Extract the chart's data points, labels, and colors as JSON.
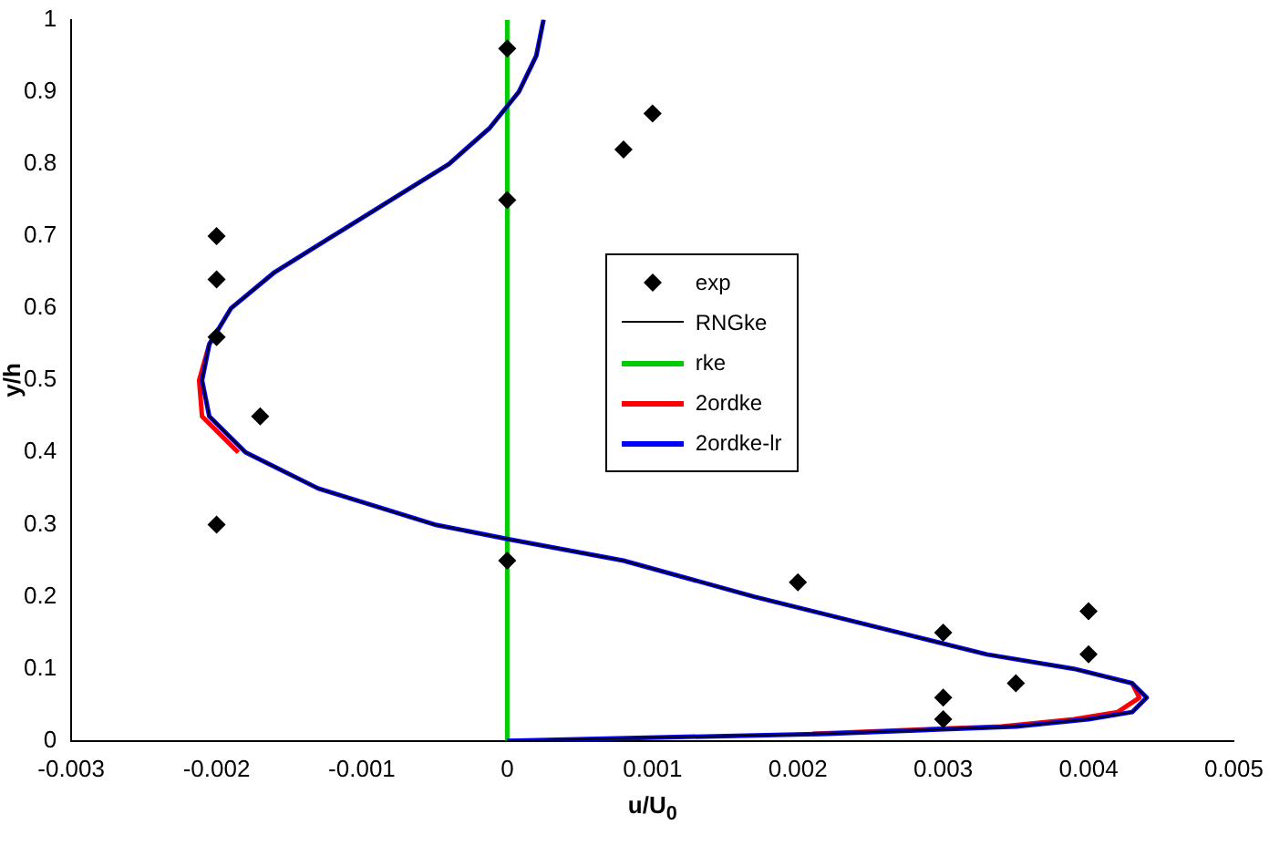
{
  "chart_data": {
    "type": "line",
    "xlabel": "u/U$_{0}$",
    "ylabel": "y/h",
    "xlim": [
      -0.003,
      0.005
    ],
    "xticks": [
      -0.003,
      -0.002,
      -0.001,
      0,
      0.001,
      0.002,
      0.003,
      0.004,
      0.005
    ],
    "ylim": [
      0,
      1
    ],
    "yticks": [
      0,
      0.1,
      0.2,
      0.3,
      0.4,
      0.5,
      0.6,
      0.7,
      0.8,
      0.9,
      1
    ],
    "grid": false,
    "legend": "center",
    "series": [
      {
        "name": "exp",
        "type": "scatter",
        "marker": "diamond",
        "color": "#000000",
        "x": [
          0,
          0.001,
          0.0008,
          0,
          -0.002,
          -0.002,
          -0.002,
          -0.0017,
          -0.002,
          0,
          0.002,
          0.003,
          0.004,
          0.004,
          0.0035,
          0.003,
          0.003
        ],
        "values": [
          0.96,
          0.87,
          0.82,
          0.75,
          0.7,
          0.64,
          0.56,
          0.45,
          0.3,
          0.25,
          0.22,
          0.15,
          0.18,
          0.12,
          0.08,
          0.06,
          0.03
        ]
      },
      {
        "name": "RNGke",
        "type": "line",
        "marker": "none",
        "color": "#000000",
        "x": [
          0,
          0.0022,
          0.0035,
          0.004,
          0.0043,
          0.0044,
          0.0043,
          0.0039,
          0.0033,
          0.0027,
          0.0017,
          0.0008,
          0,
          -0.0005,
          -0.0013,
          -0.0018,
          -0.00205,
          -0.0021,
          -0.00205,
          -0.0019,
          -0.0016,
          -0.0012,
          -0.0008,
          -0.0004,
          -0.00012,
          0,
          8e-05,
          0.0002,
          0.00025
        ],
        "values": [
          0,
          0.01,
          0.02,
          0.03,
          0.04,
          0.06,
          0.08,
          0.1,
          0.12,
          0.15,
          0.2,
          0.25,
          0.28,
          0.3,
          0.35,
          0.4,
          0.45,
          0.5,
          0.55,
          0.6,
          0.65,
          0.7,
          0.75,
          0.8,
          0.85,
          0.88,
          0.9,
          0.95,
          1
        ]
      },
      {
        "name": "rke",
        "type": "line",
        "marker": "none",
        "color": "#00cc00",
        "x": [
          0,
          0
        ],
        "values": [
          0,
          1
        ]
      },
      {
        "name": "2ordke",
        "type": "line",
        "marker": "none",
        "color": "#ff0000",
        "x": [
          0.0021,
          0.0034,
          0.0039,
          0.0042,
          0.00435,
          0.0043,
          -0.0013,
          -0.00185,
          -0.0021,
          -0.00212,
          -0.00205
        ],
        "values": [
          0.01,
          0.02,
          0.03,
          0.04,
          0.06,
          0.08,
          null,
          0.4,
          0.45,
          0.5,
          0.55
        ]
      },
      {
        "name": "2ordke-lr",
        "type": "line",
        "marker": "none",
        "color": "#0000ff",
        "x": [
          0,
          0.0022,
          0.0035,
          0.004,
          0.0043,
          0.0044,
          0.0043,
          0.0039,
          0.0033,
          0.0027,
          0.0017,
          0.0008,
          0,
          -0.0005,
          -0.0013,
          -0.0018,
          -0.00205,
          -0.0021,
          -0.00205,
          -0.0019,
          -0.0016,
          -0.0012,
          -0.0008,
          -0.0004,
          -0.00012,
          0,
          8e-05,
          0.0002,
          0.00025
        ],
        "values": [
          0,
          0.01,
          0.02,
          0.03,
          0.04,
          0.06,
          0.08,
          0.1,
          0.12,
          0.15,
          0.2,
          0.25,
          0.28,
          0.3,
          0.35,
          0.4,
          0.45,
          0.5,
          0.55,
          0.6,
          0.65,
          0.7,
          0.75,
          0.8,
          0.85,
          0.88,
          0.9,
          0.95,
          1
        ]
      }
    ]
  }
}
